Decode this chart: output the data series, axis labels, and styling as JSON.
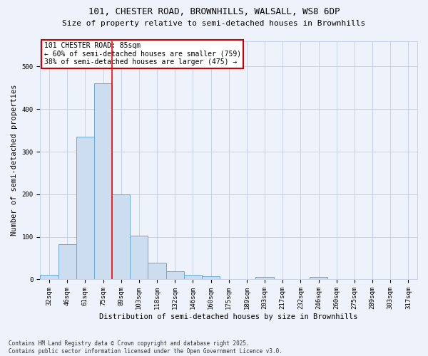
{
  "title_line1": "101, CHESTER ROAD, BROWNHILLS, WALSALL, WS8 6DP",
  "title_line2": "Size of property relative to semi-detached houses in Brownhills",
  "xlabel": "Distribution of semi-detached houses by size in Brownhills",
  "ylabel": "Number of semi-detached properties",
  "bin_labels": [
    "32sqm",
    "46sqm",
    "61sqm",
    "75sqm",
    "89sqm",
    "103sqm",
    "118sqm",
    "132sqm",
    "146sqm",
    "160sqm",
    "175sqm",
    "189sqm",
    "203sqm",
    "217sqm",
    "232sqm",
    "246sqm",
    "260sqm",
    "275sqm",
    "289sqm",
    "303sqm",
    "317sqm"
  ],
  "bar_values": [
    10,
    83,
    335,
    460,
    200,
    102,
    40,
    20,
    10,
    8,
    0,
    0,
    5,
    0,
    0,
    5,
    0,
    0,
    0,
    0,
    0
  ],
  "bar_color": "#ccddf0",
  "bar_edge_color": "#6aaad4",
  "annotation_title": "101 CHESTER ROAD: 85sqm",
  "annotation_left": "← 60% of semi-detached houses are smaller (759)",
  "annotation_right": "38% of semi-detached houses are larger (475) →",
  "annotation_box_color": "#ffffff",
  "annotation_box_edge": "#cc0000",
  "footer_line1": "Contains HM Land Registry data © Crown copyright and database right 2025.",
  "footer_line2": "Contains public sector information licensed under the Open Government Licence v3.0.",
  "bg_color": "#eef2fb",
  "grid_color": "#c8d0e8",
  "ylim": [
    0,
    560
  ],
  "red_line_x": 3.5,
  "title_fontsize": 9,
  "subtitle_fontsize": 8,
  "ylabel_fontsize": 7.5,
  "xlabel_fontsize": 7.5,
  "tick_fontsize": 6.5,
  "annot_fontsize": 7,
  "footer_fontsize": 5.5
}
